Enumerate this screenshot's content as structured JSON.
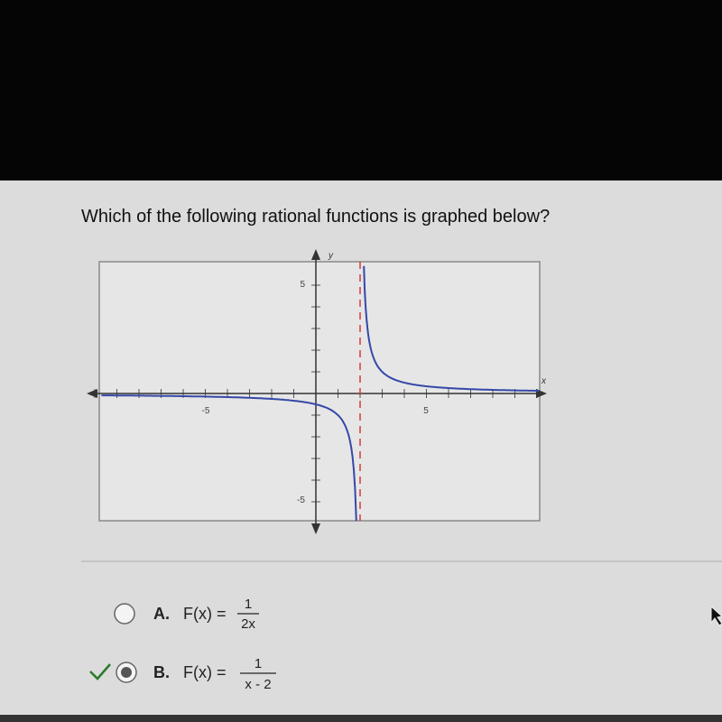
{
  "question": "Which of the following rational functions is graphed below?",
  "graph": {
    "x_axis_label": "x",
    "y_axis_label": "y",
    "x_tick_labels": [
      "-5",
      "5"
    ],
    "y_tick_labels": [
      "5",
      "-5"
    ]
  },
  "options": [
    {
      "letter": "A.",
      "function": "F(x) =",
      "numerator": "1",
      "denominator": "2x",
      "selected": false
    },
    {
      "letter": "B.",
      "function": "F(x) =",
      "numerator": "1",
      "denominator": "x - 2",
      "selected": true
    }
  ]
}
